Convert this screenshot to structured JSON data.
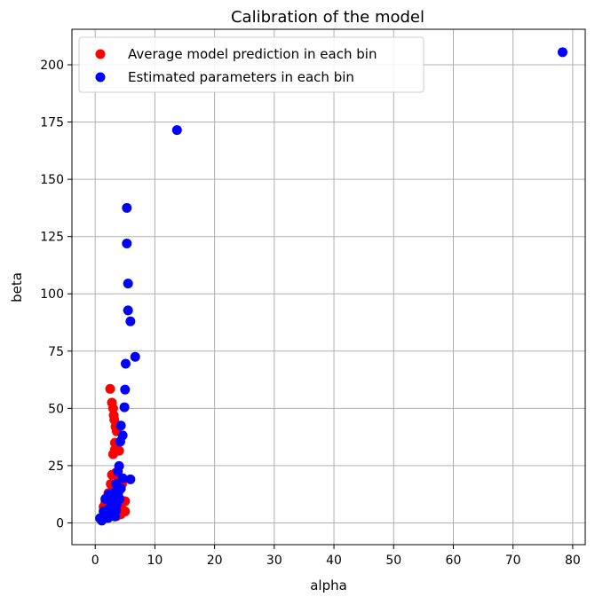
{
  "chart_data": {
    "type": "scatter",
    "title": "Calibration of the model",
    "xlabel": "alpha",
    "ylabel": "beta",
    "xlim": [
      -3.9,
      82.1
    ],
    "ylim": [
      -9.5,
      215.5
    ],
    "xticks": [
      0,
      10,
      20,
      30,
      40,
      50,
      60,
      70,
      80
    ],
    "yticks": [
      0,
      25,
      50,
      75,
      100,
      125,
      150,
      175,
      200
    ],
    "grid": true,
    "legend_position": "upper-left",
    "series": [
      {
        "name": "Average model prediction in each bin",
        "color": "#ff0000",
        "points": [
          [
            2.5,
            58.5
          ],
          [
            2.8,
            52.5
          ],
          [
            3.0,
            50.0
          ],
          [
            3.1,
            47.0
          ],
          [
            3.2,
            45.0
          ],
          [
            3.4,
            42.0
          ],
          [
            3.6,
            40.0
          ],
          [
            3.3,
            35.0
          ],
          [
            3.6,
            34.0
          ],
          [
            3.0,
            30.0
          ],
          [
            3.3,
            32.0
          ],
          [
            4.0,
            31.5
          ],
          [
            2.8,
            21.0
          ],
          [
            3.5,
            22.0
          ],
          [
            3.8,
            20.0
          ],
          [
            2.6,
            17.0
          ],
          [
            3.0,
            16.0
          ],
          [
            4.2,
            18.0
          ],
          [
            4.5,
            17.0
          ],
          [
            2.2,
            13.0
          ],
          [
            2.6,
            12.0
          ],
          [
            3.1,
            11.0
          ],
          [
            3.8,
            12.5
          ],
          [
            1.7,
            9.0
          ],
          [
            2.2,
            8.5
          ],
          [
            3.0,
            9.0
          ],
          [
            4.1,
            8.0
          ],
          [
            5.0,
            9.5
          ],
          [
            1.5,
            5.0
          ],
          [
            2.5,
            6.0
          ],
          [
            3.3,
            5.5
          ],
          [
            4.5,
            6.0
          ],
          [
            5.0,
            5.0
          ],
          [
            1.8,
            3.0
          ],
          [
            2.7,
            3.5
          ],
          [
            3.6,
            3.0
          ],
          [
            4.3,
            3.8
          ],
          [
            1.2,
            2.0
          ],
          [
            2.1,
            2.2
          ],
          [
            1.4,
            7.0
          ],
          [
            2.0,
            10.0
          ],
          [
            3.4,
            14.0
          ]
        ]
      },
      {
        "name": "Estimated parameters in each bin",
        "color": "#0000ff",
        "points": [
          [
            78.3,
            205.5
          ],
          [
            13.7,
            171.5
          ],
          [
            5.3,
            137.5
          ],
          [
            5.3,
            122.0
          ],
          [
            5.5,
            104.5
          ],
          [
            5.5,
            92.8
          ],
          [
            5.9,
            88.0
          ],
          [
            6.7,
            72.5
          ],
          [
            5.1,
            69.5
          ],
          [
            5.0,
            58.2
          ],
          [
            4.9,
            50.5
          ],
          [
            4.3,
            42.5
          ],
          [
            4.6,
            38.2
          ],
          [
            4.2,
            35.5
          ],
          [
            3.8,
            22.5
          ],
          [
            4.0,
            24.8
          ],
          [
            4.6,
            19.5
          ],
          [
            3.5,
            17.0
          ],
          [
            5.9,
            19.0
          ],
          [
            4.3,
            15.0
          ],
          [
            3.9,
            13.5
          ],
          [
            3.1,
            13.0
          ],
          [
            2.3,
            12.5
          ],
          [
            1.7,
            10.5
          ],
          [
            2.5,
            9.5
          ],
          [
            3.3,
            10.0
          ],
          [
            4.1,
            10.5
          ],
          [
            2.9,
            7.5
          ],
          [
            3.6,
            8.0
          ],
          [
            2.2,
            6.0
          ],
          [
            3.5,
            5.5
          ],
          [
            1.4,
            5.0
          ],
          [
            2.4,
            4.5
          ],
          [
            3.2,
            4.0
          ],
          [
            1.9,
            3.0
          ],
          [
            2.8,
            3.2
          ],
          [
            0.8,
            2.0
          ],
          [
            1.1,
            1.0
          ],
          [
            1.6,
            2.5
          ],
          [
            2.2,
            2.2
          ],
          [
            3.3,
            2.8
          ],
          [
            4.0,
            10.8
          ]
        ]
      }
    ]
  }
}
